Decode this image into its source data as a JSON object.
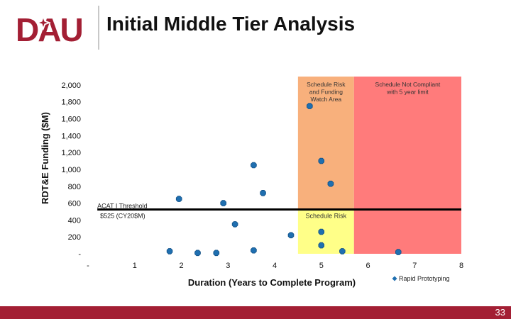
{
  "logo_text": "DAU",
  "title": "Initial Middle Tier Analysis",
  "page_number": "33",
  "colors": {
    "brand_red": "#a31f34",
    "watch_zone": "#f8b07c",
    "noncompliant_zone": "#ff7b7b",
    "risk_zone": "#ffff88",
    "marker": "#1f6fb0"
  },
  "chart_data": {
    "type": "scatter",
    "title": "",
    "xlabel": "Duration (Years to Complete Program)",
    "ylabel": "RDT&E Funding ($M)",
    "xlim": [
      0,
      8
    ],
    "ylim": [
      0,
      2100
    ],
    "x_ticks": [
      "-",
      "1",
      "2",
      "3",
      "4",
      "5",
      "6",
      "7",
      "8"
    ],
    "y_ticks": [
      "-",
      "200",
      "400",
      "600",
      "800",
      "1,000",
      "1,200",
      "1,400",
      "1,600",
      "1,800",
      "2,000"
    ],
    "y_tick_values": [
      0,
      200,
      400,
      600,
      800,
      1000,
      1200,
      1400,
      1600,
      1800,
      2000
    ],
    "regions": [
      {
        "name": "watch",
        "label": "Schedule Risk and Funding Watch Area",
        "x_range": [
          4.5,
          5.7
        ],
        "y_range": [
          525,
          2100
        ]
      },
      {
        "name": "risk",
        "label": "Schedule Risk",
        "x_range": [
          4.5,
          5.7
        ],
        "y_range": [
          0,
          525
        ]
      },
      {
        "name": "noncompliant",
        "label": "Schedule Not Compliant with 5 year limit",
        "x_range": [
          5.7,
          8
        ],
        "y_range": [
          0,
          2100
        ]
      }
    ],
    "threshold": {
      "value": 525,
      "label_line1": "ACAT I Threshold",
      "label_line2": "$525 (CY20$M)"
    },
    "series": [
      {
        "name": "Rapid Prototyping",
        "points": [
          {
            "x": 1.75,
            "y": 30
          },
          {
            "x": 2.35,
            "y": 10
          },
          {
            "x": 2.75,
            "y": 10
          },
          {
            "x": 1.95,
            "y": 650
          },
          {
            "x": 2.9,
            "y": 600
          },
          {
            "x": 3.15,
            "y": 350
          },
          {
            "x": 3.55,
            "y": 1050
          },
          {
            "x": 3.55,
            "y": 40
          },
          {
            "x": 3.75,
            "y": 720
          },
          {
            "x": 4.35,
            "y": 220
          },
          {
            "x": 4.75,
            "y": 1750
          },
          {
            "x": 5.0,
            "y": 1100
          },
          {
            "x": 5.0,
            "y": 260
          },
          {
            "x": 5.0,
            "y": 100
          },
          {
            "x": 5.2,
            "y": 830
          },
          {
            "x": 5.45,
            "y": 30
          },
          {
            "x": 6.65,
            "y": 20
          }
        ]
      }
    ]
  }
}
